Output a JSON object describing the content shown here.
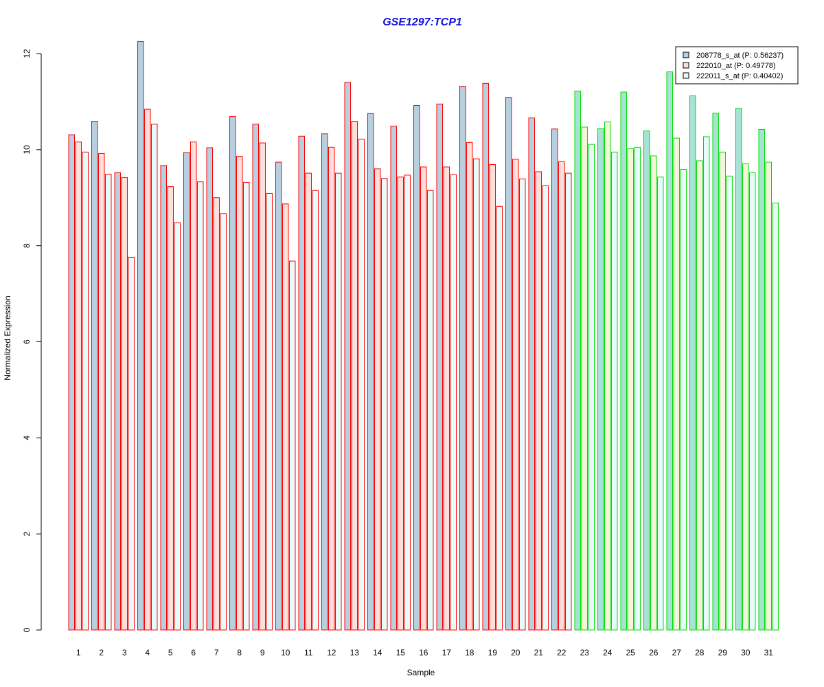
{
  "chart_data": {
    "type": "bar",
    "title": "GSE1297:TCP1",
    "xlabel": "Sample",
    "ylabel": "Normalized Expression",
    "ylim": [
      0,
      12
    ],
    "yticks": [
      0,
      2,
      4,
      6,
      8,
      10,
      12
    ],
    "grid": false,
    "legend_position": "top-right",
    "categories": [
      "1",
      "2",
      "3",
      "4",
      "5",
      "6",
      "7",
      "8",
      "9",
      "10",
      "11",
      "12",
      "13",
      "14",
      "15",
      "16",
      "17",
      "18",
      "19",
      "20",
      "21",
      "22",
      "23",
      "24",
      "25",
      "26",
      "27",
      "28",
      "29",
      "30",
      "31"
    ],
    "group_colors": {
      "categories_1_to_22": "#ff0000",
      "categories_23_to_31": "#00dd00"
    },
    "series": [
      {
        "name": "208778_s_at (P: 0.56237)",
        "fill_red_group": "#b8cfe0",
        "fill_green_group": "#a6e3d5",
        "values": [
          10.31,
          10.59,
          9.52,
          12.25,
          9.67,
          9.94,
          10.04,
          10.69,
          10.53,
          9.74,
          10.28,
          10.33,
          11.4,
          10.75,
          10.49,
          10.92,
          10.95,
          11.32,
          11.38,
          11.09,
          10.66,
          10.43,
          11.22,
          10.44,
          11.2,
          10.39,
          11.62,
          11.12,
          10.76,
          10.86,
          10.42
        ]
      },
      {
        "name": "222010_at (P: 0.49778)",
        "fill_red_group": "#fde0dc",
        "fill_green_group": "#f5f5dc",
        "values": [
          10.16,
          9.92,
          9.42,
          10.84,
          9.23,
          10.16,
          9.0,
          9.86,
          10.14,
          8.87,
          9.51,
          10.05,
          10.59,
          9.6,
          9.43,
          9.64,
          9.64,
          10.15,
          9.69,
          9.8,
          9.54,
          9.75,
          10.47,
          10.58,
          10.02,
          9.87,
          10.24,
          9.77,
          9.95,
          9.71,
          9.74
        ]
      },
      {
        "name": "222011_s_at (P: 0.40402)",
        "fill_red_group": "#e8fbfb",
        "fill_green_group": "#e8fbfb",
        "values": [
          9.95,
          9.49,
          7.76,
          10.53,
          8.48,
          9.33,
          8.67,
          9.32,
          9.09,
          7.68,
          9.15,
          9.51,
          10.22,
          9.4,
          9.47,
          9.15,
          9.48,
          9.81,
          8.82,
          9.39,
          9.25,
          9.51,
          10.11,
          9.95,
          10.05,
          9.43,
          9.59,
          10.27,
          9.45,
          9.52,
          8.89
        ]
      }
    ],
    "legend_swatch_colors": [
      "#b8cfe0",
      "#fde0dc",
      "#e8fbfb"
    ],
    "title_color": "#1010dd"
  }
}
